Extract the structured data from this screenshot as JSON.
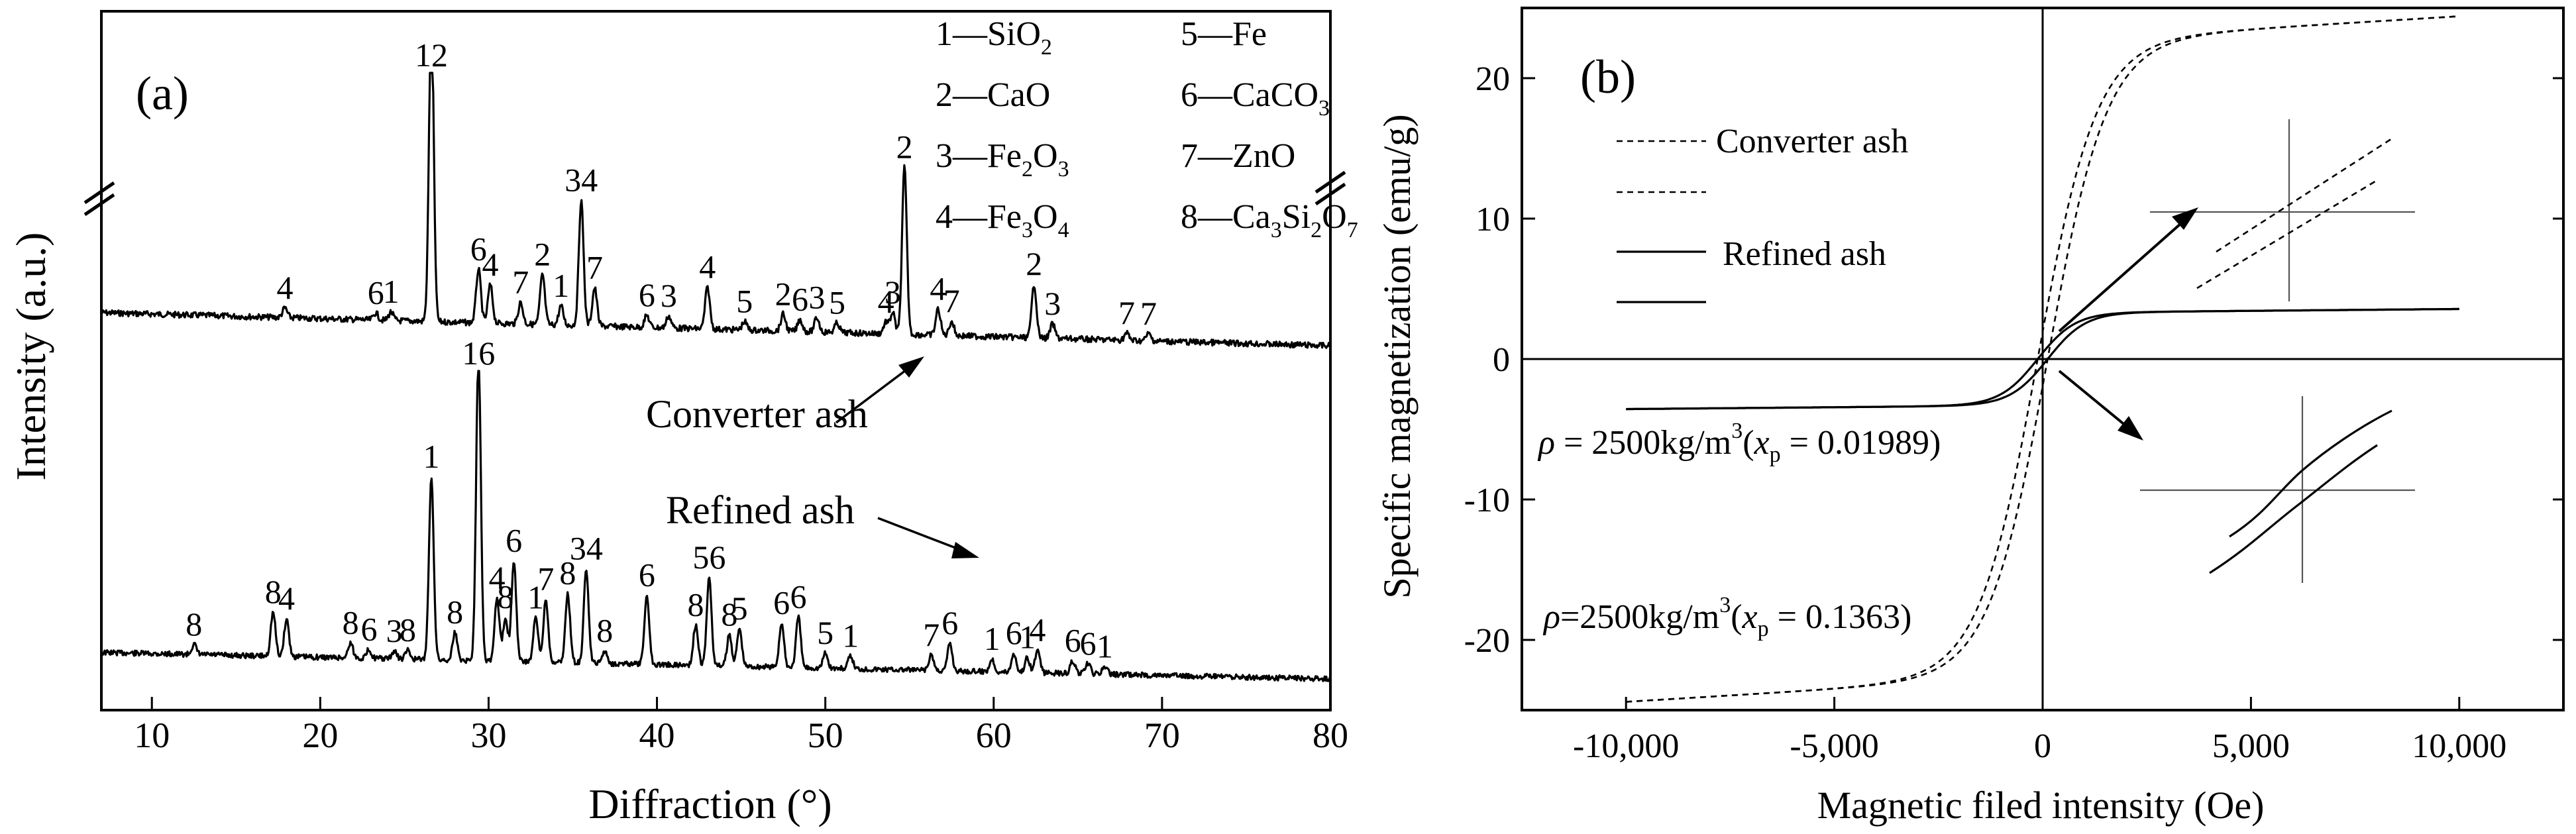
{
  "chart_data": [
    {
      "panel": "(a)",
      "type": "line",
      "xlabel": "Diffraction (°)",
      "ylabel": "Intensity (a.u.)",
      "xlim": [
        7,
        80
      ],
      "x_ticks": [
        10,
        20,
        30,
        40,
        50,
        60,
        70,
        80
      ],
      "series": [
        {
          "name": "Converter ash",
          "peaks": [
            {
              "x": 17.9,
              "h": 0.08,
              "label": "4"
            },
            {
              "x": 23.3,
              "h": 0.06,
              "label": "6"
            },
            {
              "x": 24.2,
              "h": 0.07,
              "label": "1"
            },
            {
              "x": 26.6,
              "h": 2.6,
              "label": "12"
            },
            {
              "x": 29.4,
              "h": 0.45,
              "label": "6"
            },
            {
              "x": 30.1,
              "h": 0.32,
              "label": "4"
            },
            {
              "x": 31.9,
              "h": 0.18,
              "label": "7"
            },
            {
              "x": 33.2,
              "h": 0.42,
              "label": "2"
            },
            {
              "x": 34.3,
              "h": 0.16,
              "label": "1"
            },
            {
              "x": 35.5,
              "h": 1.05,
              "label": "34"
            },
            {
              "x": 36.3,
              "h": 0.32,
              "label": "7"
            },
            {
              "x": 39.4,
              "h": 0.1,
              "label": "6"
            },
            {
              "x": 40.7,
              "h": 0.1,
              "label": "3"
            },
            {
              "x": 43.0,
              "h": 0.35,
              "label": "4"
            },
            {
              "x": 45.2,
              "h": 0.07,
              "label": "5"
            },
            {
              "x": 47.5,
              "h": 0.14,
              "label": "2"
            },
            {
              "x": 48.5,
              "h": 0.1,
              "label": "6"
            },
            {
              "x": 49.5,
              "h": 0.12,
              "label": "3"
            },
            {
              "x": 50.7,
              "h": 0.08,
              "label": "5"
            },
            {
              "x": 53.6,
              "h": 0.1,
              "label": "4"
            },
            {
              "x": 54.0,
              "h": 0.18,
              "label": "3"
            },
            {
              "x": 54.7,
              "h": 1.4,
              "label": "2"
            },
            {
              "x": 56.7,
              "h": 0.22,
              "label": "4"
            },
            {
              "x": 57.5,
              "h": 0.12,
              "label": "7"
            },
            {
              "x": 62.4,
              "h": 0.45,
              "label": "2"
            },
            {
              "x": 63.5,
              "h": 0.12,
              "label": "3"
            },
            {
              "x": 67.9,
              "h": 0.06,
              "label": "7"
            },
            {
              "x": 69.2,
              "h": 0.06,
              "label": "7"
            }
          ]
        },
        {
          "name": "Refined ash",
          "peaks": [
            {
              "x": 12.5,
              "h": 0.08,
              "label": "8"
            },
            {
              "x": 17.2,
              "h": 0.35,
              "label": "8"
            },
            {
              "x": 18.0,
              "h": 0.3,
              "label": "4"
            },
            {
              "x": 21.8,
              "h": 0.12,
              "label": "8"
            },
            {
              "x": 22.9,
              "h": 0.07,
              "label": "6"
            },
            {
              "x": 24.4,
              "h": 0.06,
              "label": "3"
            },
            {
              "x": 25.2,
              "h": 0.07,
              "label": "8"
            },
            {
              "x": 26.6,
              "h": 1.45,
              "label": "1"
            },
            {
              "x": 28.0,
              "h": 0.22,
              "label": "8"
            },
            {
              "x": 29.4,
              "h": 2.45,
              "label": "16"
            },
            {
              "x": 30.5,
              "h": 0.5,
              "label": "4"
            },
            {
              "x": 31.0,
              "h": 0.35,
              "label": "8"
            },
            {
              "x": 31.5,
              "h": 0.8,
              "label": "6"
            },
            {
              "x": 32.8,
              "h": 0.35,
              "label": "1"
            },
            {
              "x": 33.4,
              "h": 0.5,
              "label": "7"
            },
            {
              "x": 34.7,
              "h": 0.55,
              "label": "8"
            },
            {
              "x": 35.8,
              "h": 0.75,
              "label": "34"
            },
            {
              "x": 36.9,
              "h": 0.1,
              "label": "8"
            },
            {
              "x": 39.4,
              "h": 0.55,
              "label": "6"
            },
            {
              "x": 42.3,
              "h": 0.32,
              "label": "8"
            },
            {
              "x": 43.1,
              "h": 0.7,
              "label": "56"
            },
            {
              "x": 44.3,
              "h": 0.25,
              "label": "8"
            },
            {
              "x": 44.9,
              "h": 0.3,
              "label": "5"
            },
            {
              "x": 47.4,
              "h": 0.35,
              "label": "6"
            },
            {
              "x": 48.4,
              "h": 0.4,
              "label": "6"
            },
            {
              "x": 50.0,
              "h": 0.12,
              "label": "5"
            },
            {
              "x": 51.5,
              "h": 0.1,
              "label": "1"
            },
            {
              "x": 56.3,
              "h": 0.12,
              "label": "7"
            },
            {
              "x": 57.4,
              "h": 0.22,
              "label": "6"
            },
            {
              "x": 59.9,
              "h": 0.1,
              "label": "1"
            },
            {
              "x": 61.2,
              "h": 0.15,
              "label": "6"
            },
            {
              "x": 62.0,
              "h": 0.12,
              "label": "1"
            },
            {
              "x": 62.6,
              "h": 0.18,
              "label": "4"
            },
            {
              "x": 64.7,
              "h": 0.1,
              "label": "6"
            },
            {
              "x": 65.6,
              "h": 0.08,
              "label": "6"
            },
            {
              "x": 66.6,
              "h": 0.06,
              "label": "1"
            }
          ]
        }
      ],
      "legend": [
        {
          "num": "1",
          "formula": [
            "SiO",
            {
              "sub": "2"
            }
          ]
        },
        {
          "num": "2",
          "formula": [
            "CaO"
          ]
        },
        {
          "num": "3",
          "formula": [
            "Fe",
            {
              "sub": "2"
            },
            "O",
            {
              "sub": "3"
            }
          ]
        },
        {
          "num": "4",
          "formula": [
            "Fe",
            {
              "sub": "3"
            },
            "O",
            {
              "sub": "4"
            }
          ]
        },
        {
          "num": "5",
          "formula": [
            "Fe"
          ]
        },
        {
          "num": "6",
          "formula": [
            "CaCO",
            {
              "sub": "3"
            }
          ]
        },
        {
          "num": "7",
          "formula": [
            "ZnO"
          ]
        },
        {
          "num": "8",
          "formula": [
            "Ca",
            {
              "sub": "3"
            },
            "Si",
            {
              "sub": "2"
            },
            "O",
            {
              "sub": "7"
            }
          ]
        }
      ],
      "legend_dash": "—",
      "annotations": [
        "Converter ash",
        "Refined ash"
      ]
    },
    {
      "panel": "(b)",
      "type": "line",
      "xlabel": "Magnetic filed intensity (Oe)",
      "ylabel": "Specific magnetization (emu/g)",
      "xlim": [
        -12500,
        12500
      ],
      "ylim": [
        -25,
        25
      ],
      "x_ticks": [
        -10000,
        -5000,
        0,
        5000,
        10000
      ],
      "x_tick_labels": [
        "-10,000",
        "-5,000",
        "0",
        "5,000",
        "10,000"
      ],
      "y_ticks": [
        -20,
        -10,
        0,
        10,
        20
      ],
      "y_tick_labels": [
        "-20",
        "-10",
        "0",
        "10",
        "20"
      ],
      "series": [
        {
          "name": "Converter ash",
          "style": "dashed",
          "x_range": [
            -10000,
            10000
          ],
          "saturation": 22.6,
          "field_scale": 1400
        },
        {
          "name": "Refined ash",
          "style": "solid",
          "x_range": [
            -10000,
            10000
          ],
          "saturation": 3.3,
          "field_scale": 900
        }
      ],
      "legend": [
        "Converter ash",
        "Refined ash"
      ],
      "density_labels": {
        "refined": {
          "rho_sym": "ρ",
          "text1": " = 2500kg/m",
          "sup": "3",
          "text2": "(",
          "x_sym": "x",
          "sub": "p",
          "text3": " = 0.01989)"
        },
        "converter": {
          "rho_sym": "ρ",
          "text1": "=2500kg/m",
          "sup": "3",
          "text2": "(",
          "x_sym": "x",
          "sub": "p",
          "text3": " = 0.1363)"
        }
      }
    }
  ]
}
